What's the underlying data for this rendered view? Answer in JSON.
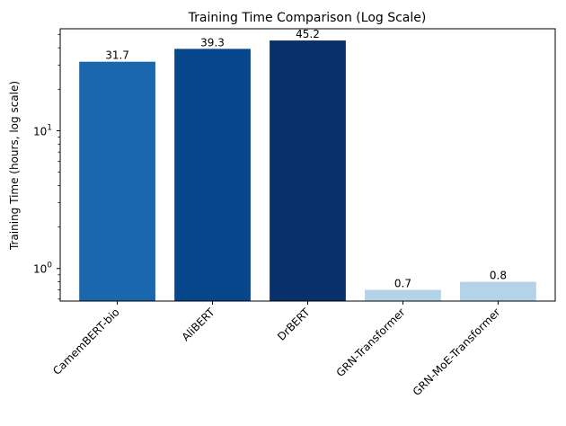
{
  "chart_data": {
    "type": "bar",
    "title": "Training Time Comparison (Log Scale)",
    "xlabel": "",
    "ylabel": "Training Time (hours, log scale)",
    "yscale": "log",
    "ylim": [
      0.58,
      55
    ],
    "grid": false,
    "legend": "none",
    "categories": [
      "CamemBERT-bio",
      "AliBERT",
      "DrBERT",
      "GRN-Transformer",
      "GRN-MoE-Transformer"
    ],
    "values": [
      31.7,
      39.3,
      45.2,
      0.7,
      0.8
    ],
    "data_labels": [
      "31.7",
      "39.3",
      "45.2",
      "0.7",
      "0.8"
    ],
    "bar_colors": [
      "#1a67ad",
      "#08468b",
      "#08306b",
      "#b3d3e8",
      "#b3d3e8"
    ],
    "major_ticks": [
      {
        "value": 1,
        "base": "10",
        "exp": "0"
      },
      {
        "value": 10,
        "base": "10",
        "exp": "1"
      }
    ],
    "minor_ticks": [
      0.6,
      0.7,
      0.8,
      0.9,
      2,
      3,
      4,
      5,
      6,
      7,
      8,
      9,
      20,
      30,
      40,
      50
    ]
  }
}
